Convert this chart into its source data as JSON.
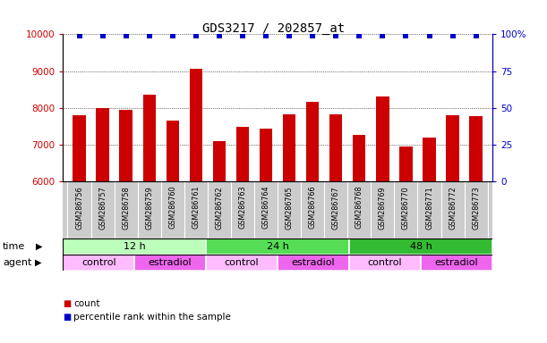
{
  "title": "GDS3217 / 202857_at",
  "samples": [
    "GSM286756",
    "GSM286757",
    "GSM286758",
    "GSM286759",
    "GSM286760",
    "GSM286761",
    "GSM286762",
    "GSM286763",
    "GSM286764",
    "GSM286765",
    "GSM286766",
    "GSM286767",
    "GSM286768",
    "GSM286769",
    "GSM286770",
    "GSM286771",
    "GSM286772",
    "GSM286773"
  ],
  "bar_values": [
    7800,
    8000,
    7950,
    8350,
    7650,
    9050,
    7100,
    7480,
    7430,
    7820,
    8150,
    7820,
    7270,
    8300,
    6950,
    7200,
    7800,
    7780
  ],
  "percentile_values": [
    99,
    99,
    99,
    99,
    99,
    99,
    99,
    99,
    99,
    99,
    99,
    99,
    99,
    99,
    99,
    99,
    99,
    99
  ],
  "bar_color": "#cc0000",
  "percentile_color": "#0000cc",
  "ylim_left": [
    6000,
    10000
  ],
  "ylim_right": [
    0,
    100
  ],
  "yticks_left": [
    6000,
    7000,
    8000,
    9000,
    10000
  ],
  "yticks_right": [
    0,
    25,
    50,
    75,
    100
  ],
  "ytick_labels_right": [
    "0",
    "25",
    "50",
    "75",
    "100%"
  ],
  "grid_yticks": [
    7000,
    8000,
    9000,
    10000
  ],
  "time_groups": [
    {
      "label": "12 h",
      "start": 0,
      "end": 6,
      "color": "#bbffbb"
    },
    {
      "label": "24 h",
      "start": 6,
      "end": 12,
      "color": "#55dd55"
    },
    {
      "label": "48 h",
      "start": 12,
      "end": 18,
      "color": "#33bb33"
    }
  ],
  "agent_groups": [
    {
      "label": "control",
      "start": 0,
      "end": 3,
      "color": "#ffbbff"
    },
    {
      "label": "estradiol",
      "start": 3,
      "end": 6,
      "color": "#ee66ee"
    },
    {
      "label": "control",
      "start": 6,
      "end": 9,
      "color": "#ffbbff"
    },
    {
      "label": "estradiol",
      "start": 9,
      "end": 12,
      "color": "#ee66ee"
    },
    {
      "label": "control",
      "start": 12,
      "end": 15,
      "color": "#ffbbff"
    },
    {
      "label": "estradiol",
      "start": 15,
      "end": 18,
      "color": "#ee66ee"
    }
  ],
  "xlabels_bg": "#cccccc",
  "legend_count_color": "#cc0000",
  "legend_percentile_color": "#0000cc",
  "time_label": "time",
  "agent_label": "agent",
  "title_fontsize": 10,
  "bar_width": 0.55
}
